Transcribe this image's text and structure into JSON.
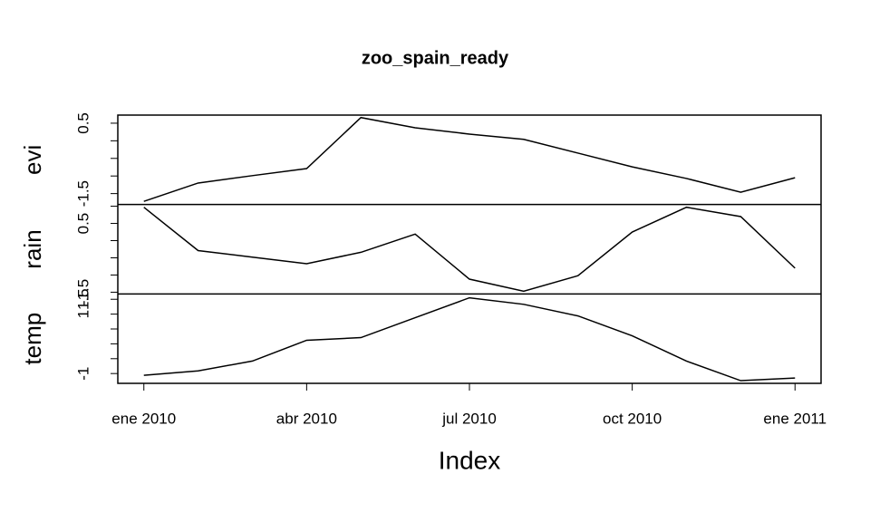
{
  "chart_data": {
    "type": "line",
    "title": "zoo_spain_ready",
    "xlabel": "Index",
    "x": [
      "2010-01",
      "2010-02",
      "2010-03",
      "2010-04",
      "2010-05",
      "2010-06",
      "2010-07",
      "2010-08",
      "2010-09",
      "2010-10",
      "2010-11",
      "2010-12",
      "2011-01"
    ],
    "xticks": [
      {
        "value": "2010-01",
        "label": "ene 2010"
      },
      {
        "value": "2010-04",
        "label": "abr 2010"
      },
      {
        "value": "2010-07",
        "label": "jul 2010"
      },
      {
        "value": "2010-10",
        "label": "oct 2010"
      },
      {
        "value": "2011-01",
        "label": "ene 2011"
      }
    ],
    "color": "#000000",
    "panels": [
      {
        "name": "evi",
        "values": [
          -1.72,
          -1.2,
          -0.99,
          -0.79,
          0.66,
          0.37,
          0.19,
          0.04,
          -0.35,
          -0.74,
          -1.07,
          -1.46,
          -1.05
        ],
        "ylim": [
          -1.81,
          0.73
        ],
        "yticks": [
          -1.5,
          0.5
        ],
        "yminor": [
          -1,
          -0.5,
          0
        ]
      },
      {
        "name": "rain",
        "values": [
          0.97,
          -0.29,
          -0.48,
          -0.67,
          -0.34,
          0.19,
          -1.12,
          -1.47,
          -1.02,
          0.25,
          0.97,
          0.7,
          -0.8
        ],
        "ylim": [
          -1.55,
          1.05
        ],
        "yticks": [
          -1.5,
          0.5
        ],
        "yminor": [
          -1,
          -0.5,
          0,
          1
        ]
      },
      {
        "name": "temp",
        "values": [
          -1.06,
          -0.91,
          -0.58,
          0.12,
          0.21,
          0.88,
          1.55,
          1.33,
          0.94,
          0.27,
          -0.58,
          -1.24,
          -1.15
        ],
        "ylim": [
          -1.33,
          1.68
        ],
        "yticks": [
          -1.0,
          1.0,
          1.5
        ],
        "yminor": [
          -0.5,
          0,
          0.5
        ]
      }
    ]
  }
}
